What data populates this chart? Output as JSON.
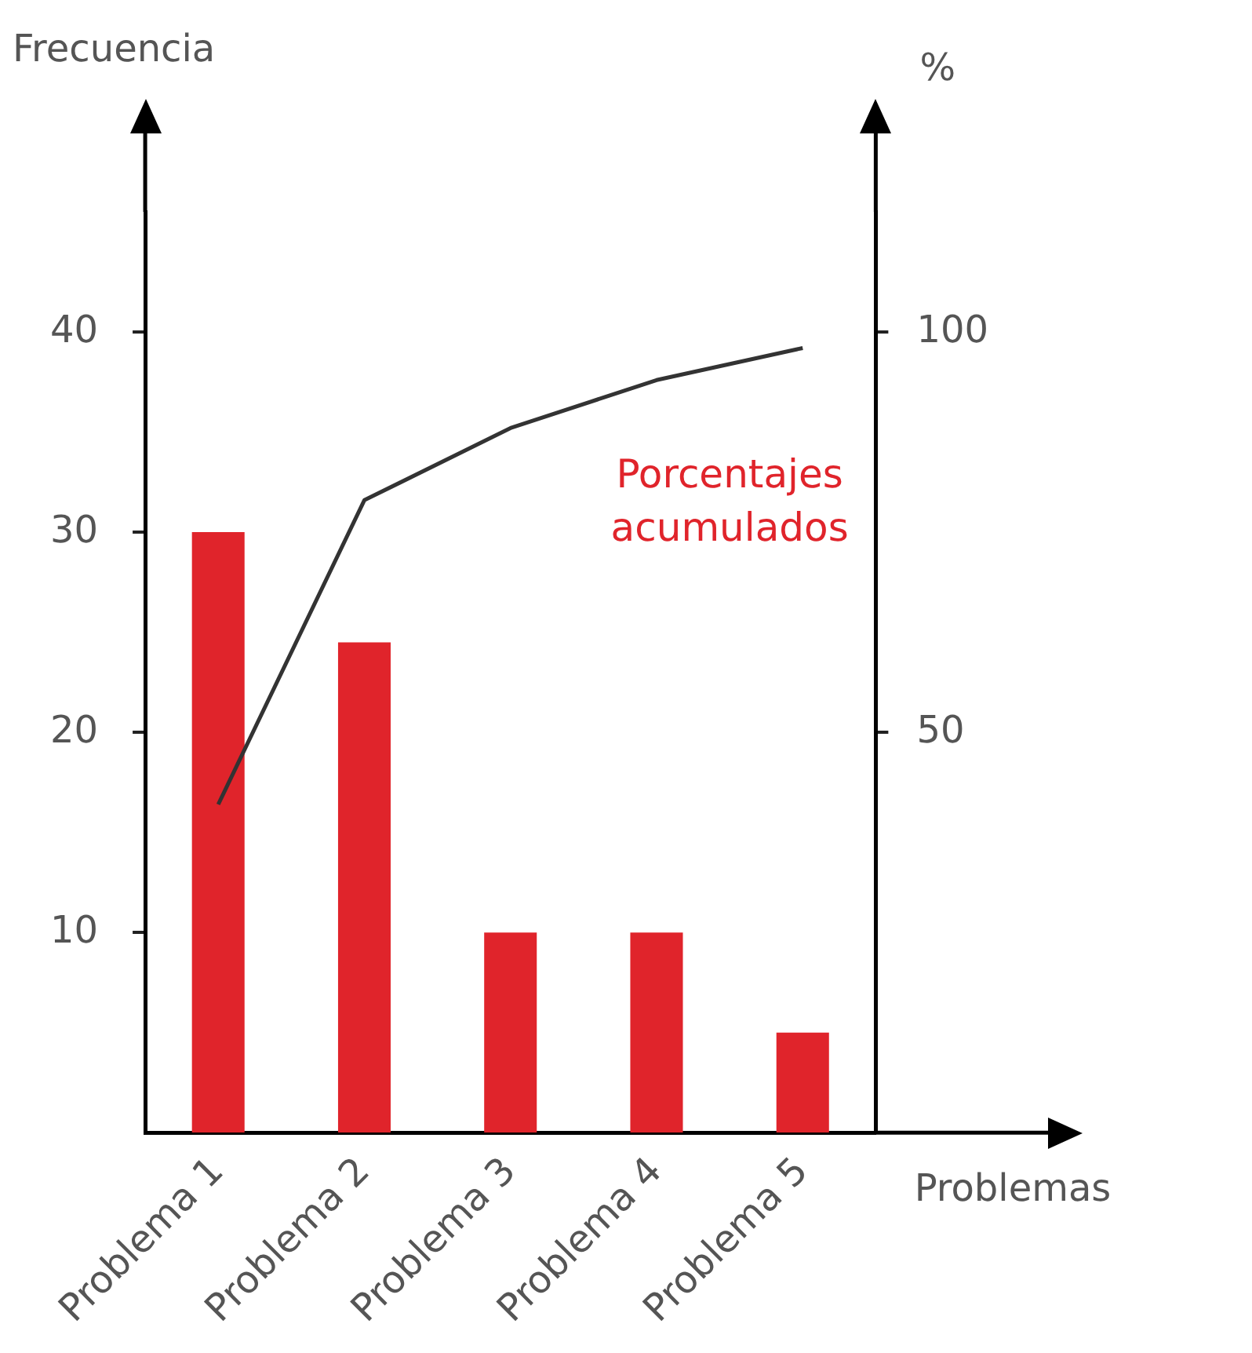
{
  "chart_data": {
    "type": "bar",
    "ylabel": "Frecuencia",
    "y2label": "%",
    "xlabel": "Problemas",
    "categories": [
      "Problema 1",
      "Problema 2",
      "Problema 3",
      "Problema 4",
      "Problema 5"
    ],
    "series": [
      {
        "color": "#e0242b",
        "values": [
          30,
          24.5,
          10,
          10,
          5
        ]
      },
      {
        "type": "line",
        "axis": "y2",
        "color": "#333333",
        "values": [
          41,
          79,
          88,
          94,
          98
        ]
      }
    ],
    "ylim": [
      0,
      46
    ],
    "yticks": [
      10,
      20,
      30,
      40
    ],
    "y2lim": [
      0,
      115
    ],
    "y2ticks": [
      50,
      100
    ],
    "annotations": [
      "Porcentajes acumulados"
    ],
    "grid": false,
    "legend": false,
    "marker": "none"
  }
}
